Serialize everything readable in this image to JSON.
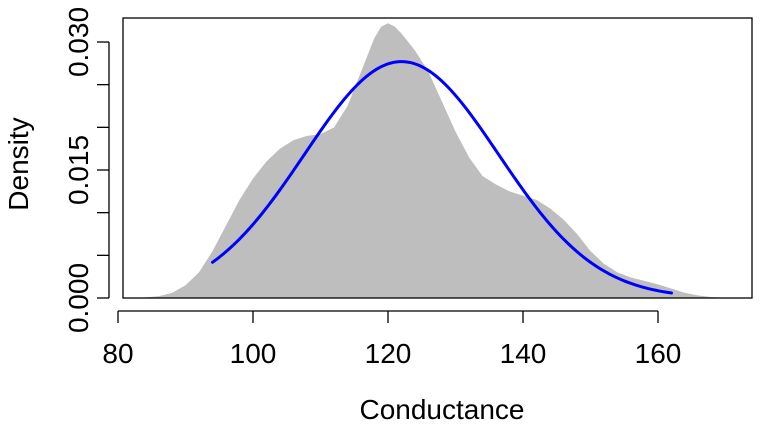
{
  "chart_data": {
    "type": "area",
    "title": "",
    "xlabel": "Conductance",
    "ylabel": "Density",
    "xlim": [
      80,
      175
    ],
    "ylim": [
      0,
      0.032
    ],
    "grid": false,
    "x_ticks": [
      80,
      100,
      120,
      140,
      160
    ],
    "x_tick_labels": [
      "80",
      "100",
      "120",
      "140",
      "160"
    ],
    "y_ticks": [
      0.0,
      0.005,
      0.01,
      0.015,
      0.02,
      0.025,
      0.03
    ],
    "y_tick_labels": [
      "0.000",
      "",
      "",
      "0.015",
      "",
      "",
      "0.030"
    ],
    "series": [
      {
        "kind": "density-area",
        "color": "#bebebe",
        "x": [
          83,
          86,
          88,
          90,
          92,
          94,
          96,
          98,
          100,
          102,
          104,
          106,
          108,
          110,
          112,
          114,
          116,
          118,
          119,
          120,
          121,
          122,
          124,
          126,
          128,
          130,
          132,
          134,
          136,
          138,
          140,
          142,
          144,
          146,
          148,
          150,
          152,
          154,
          156,
          158,
          160,
          162,
          164,
          166,
          168,
          171
        ],
        "y": [
          0.0,
          0.0002,
          0.0006,
          0.0015,
          0.003,
          0.0055,
          0.0085,
          0.0115,
          0.014,
          0.016,
          0.0175,
          0.0185,
          0.019,
          0.0192,
          0.02,
          0.0225,
          0.0265,
          0.0305,
          0.0318,
          0.0322,
          0.0318,
          0.031,
          0.029,
          0.0265,
          0.023,
          0.0195,
          0.0165,
          0.0143,
          0.0133,
          0.0125,
          0.012,
          0.0115,
          0.0105,
          0.0092,
          0.0075,
          0.0055,
          0.004,
          0.003,
          0.0024,
          0.002,
          0.0016,
          0.0011,
          0.0006,
          0.0003,
          0.0001,
          0.0
        ]
      },
      {
        "kind": "normal-curve",
        "color": "#0000ff",
        "mean": 122,
        "sd": 14.4,
        "x_start": 94,
        "x_end": 162
      }
    ]
  }
}
